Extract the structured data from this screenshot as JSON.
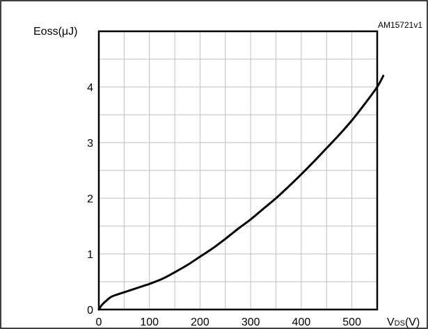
{
  "figure_id": "AM15721v1",
  "chart_data": {
    "type": "line",
    "ylabel": "Eoss(μJ)",
    "xlabel": {
      "main": "V",
      "subscript": "DS",
      "unit": "(V)"
    },
    "xlim": [
      0,
      550
    ],
    "ylim": [
      0,
      5
    ],
    "x_ticks": [
      0,
      50,
      100,
      150,
      200,
      250,
      300,
      350,
      400,
      450,
      500,
      550
    ],
    "x_tick_labels": [
      "0",
      "100",
      "200",
      "300",
      "400",
      "500"
    ],
    "x_tick_label_values": [
      0,
      100,
      200,
      300,
      400,
      500
    ],
    "y_ticks": [
      0,
      0.5,
      1,
      1.5,
      2,
      2.5,
      3,
      3.5,
      4,
      4.5,
      5
    ],
    "y_tick_labels": [
      "0",
      "1",
      "2",
      "3",
      "4"
    ],
    "y_tick_label_values": [
      0,
      1,
      2,
      3,
      4
    ],
    "grid": true,
    "legend": "none",
    "series": [
      {
        "x": [
          0,
          5,
          10,
          15,
          20,
          25,
          30,
          40,
          50,
          60,
          70,
          80,
          90,
          100,
          125,
          150,
          175,
          200,
          225,
          250,
          275,
          300,
          325,
          350,
          375,
          400,
          425,
          450,
          475,
          500,
          525,
          550,
          562
        ],
        "y": [
          0.0,
          0.07,
          0.12,
          0.16,
          0.2,
          0.23,
          0.25,
          0.28,
          0.31,
          0.34,
          0.37,
          0.4,
          0.43,
          0.46,
          0.55,
          0.67,
          0.8,
          0.95,
          1.1,
          1.27,
          1.45,
          1.62,
          1.81,
          2.0,
          2.21,
          2.43,
          2.66,
          2.9,
          3.14,
          3.4,
          3.69,
          4.0,
          4.2
        ],
        "color": "#000000"
      }
    ],
    "colors": {
      "grid": "#bfbfbf",
      "axis": "#000000",
      "frame": "#000000",
      "background": "#ffffff"
    }
  }
}
